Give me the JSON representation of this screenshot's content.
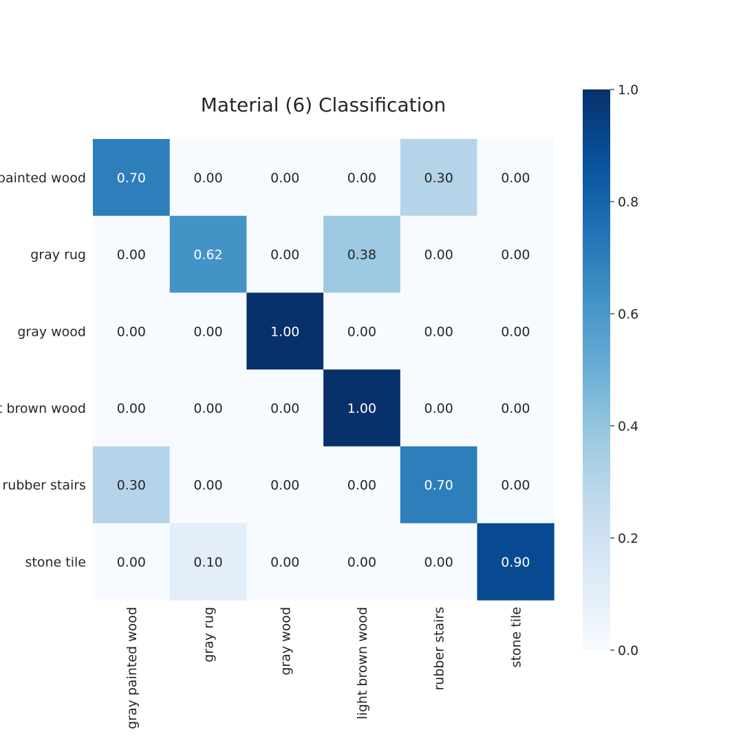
{
  "chart_data": {
    "type": "heatmap",
    "title": "Material (6) Classification",
    "rows": [
      "gray painted wood",
      "gray rug",
      "gray wood",
      "light brown wood",
      "rubber stairs",
      "stone tile"
    ],
    "columns": [
      "gray painted wood",
      "gray rug",
      "gray wood",
      "light brown wood",
      "rubber stairs",
      "stone tile"
    ],
    "values": [
      [
        0.7,
        0.0,
        0.0,
        0.0,
        0.3,
        0.0
      ],
      [
        0.0,
        0.62,
        0.0,
        0.38,
        0.0,
        0.0
      ],
      [
        0.0,
        0.0,
        1.0,
        0.0,
        0.0,
        0.0
      ],
      [
        0.0,
        0.0,
        0.0,
        1.0,
        0.0,
        0.0
      ],
      [
        0.3,
        0.0,
        0.0,
        0.0,
        0.7,
        0.0
      ],
      [
        0.0,
        0.1,
        0.0,
        0.0,
        0.0,
        0.9
      ]
    ],
    "value_format": "0.00",
    "colorscale": "Blues",
    "colorbar": {
      "range": [
        0.0,
        1.0
      ],
      "ticks": [
        0.0,
        0.2,
        0.4,
        0.6,
        0.8,
        1.0
      ],
      "tick_labels": [
        "0.0",
        "0.2",
        "0.4",
        "0.6",
        "0.8",
        "1.0"
      ]
    },
    "xlabel": "",
    "ylabel": ""
  }
}
